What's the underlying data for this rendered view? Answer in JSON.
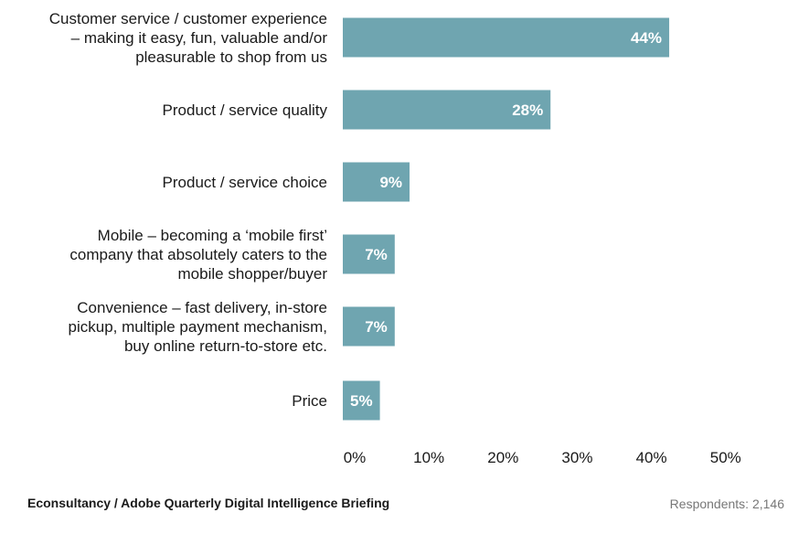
{
  "chart_data": {
    "type": "bar",
    "orientation": "horizontal",
    "title": "",
    "xlabel": "",
    "ylabel": "",
    "categories": [
      [
        "Customer service / customer experience",
        "– making it easy, fun, valuable and/or",
        "pleasurable to shop from us"
      ],
      [
        "Product / service quality"
      ],
      [
        "Product / service choice"
      ],
      [
        "Mobile – becoming a ‘mobile first’",
        "company that absolutely caters to the",
        "mobile shopper/buyer"
      ],
      [
        "Convenience – fast delivery, in-store",
        "pickup, multiple payment mechanism,",
        "buy online return-to-store etc."
      ],
      [
        "Price"
      ]
    ],
    "values": [
      44,
      28,
      9,
      7,
      7,
      5
    ],
    "value_labels": [
      "44%",
      "28%",
      "9%",
      "7%",
      "7%",
      "5%"
    ],
    "xlim": [
      0,
      52
    ],
    "ticks": [
      0,
      10,
      20,
      30,
      40,
      50
    ],
    "tick_labels": [
      "0%",
      "10%",
      "20%",
      "30%",
      "40%",
      "50%"
    ],
    "grid": false,
    "bar_color": "#6fa5b0"
  },
  "footer": {
    "source": "Econsultancy / Adobe Quarterly Digital Intelligence Briefing",
    "respondents": "Respondents: 2,146"
  }
}
